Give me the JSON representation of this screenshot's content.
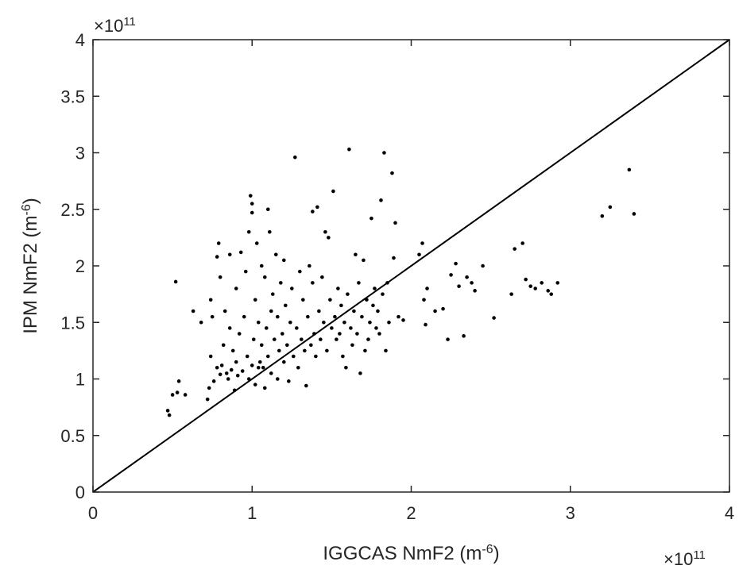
{
  "chart_data": {
    "type": "scatter",
    "title": "",
    "xlabel": {
      "text": "IGGCAS NmF2 (m",
      "sup": "-6",
      "suffix": ")"
    },
    "ylabel": {
      "text": "IPM NmF2 (m",
      "sup": "-6",
      "suffix": ")"
    },
    "x_multiplier": {
      "base": "×10",
      "exp": "11"
    },
    "y_multiplier": {
      "base": "×10",
      "exp": "11"
    },
    "xlim": [
      0,
      4
    ],
    "ylim": [
      0,
      4
    ],
    "xticks": [
      0,
      1,
      2,
      3,
      4
    ],
    "xtick_labels": [
      "0",
      "1",
      "2",
      "3",
      "4"
    ],
    "yticks": [
      0,
      0.5,
      1,
      1.5,
      2,
      2.5,
      3,
      3.5,
      4
    ],
    "ytick_labels": [
      "0",
      "0.5",
      "1",
      "1.5",
      "2",
      "2.5",
      "3",
      "3.5",
      "4"
    ],
    "grid": false,
    "reference_line": {
      "x": [
        0,
        4
      ],
      "y": [
        0,
        4
      ]
    },
    "marker_color": "#000000",
    "points": [
      [
        0.47,
        0.72
      ],
      [
        0.48,
        0.68
      ],
      [
        0.5,
        0.86
      ],
      [
        0.53,
        0.88
      ],
      [
        0.54,
        0.98
      ],
      [
        0.58,
        0.86
      ],
      [
        0.52,
        1.86
      ],
      [
        0.63,
        1.6
      ],
      [
        0.68,
        1.5
      ],
      [
        0.72,
        0.82
      ],
      [
        0.73,
        0.92
      ],
      [
        0.74,
        1.2
      ],
      [
        0.74,
        1.7
      ],
      [
        0.75,
        1.55
      ],
      [
        0.76,
        0.98
      ],
      [
        0.78,
        1.1
      ],
      [
        0.78,
        2.08
      ],
      [
        0.79,
        2.2
      ],
      [
        0.8,
        1.9
      ],
      [
        0.8,
        1.04
      ],
      [
        0.81,
        1.12
      ],
      [
        0.82,
        1.3
      ],
      [
        0.83,
        1.6
      ],
      [
        0.84,
        1.05
      ],
      [
        0.85,
        1.0
      ],
      [
        0.86,
        1.45
      ],
      [
        0.86,
        2.1
      ],
      [
        0.87,
        1.08
      ],
      [
        0.88,
        1.25
      ],
      [
        0.89,
        0.9
      ],
      [
        0.9,
        1.15
      ],
      [
        0.9,
        1.8
      ],
      [
        0.91,
        1.03
      ],
      [
        0.92,
        1.4
      ],
      [
        0.93,
        2.12
      ],
      [
        0.94,
        1.07
      ],
      [
        0.95,
        1.55
      ],
      [
        0.96,
        1.95
      ],
      [
        0.97,
        1.2
      ],
      [
        0.98,
        1.0
      ],
      [
        0.98,
        2.3
      ],
      [
        0.99,
        2.62
      ],
      [
        1.0,
        2.55
      ],
      [
        1.0,
        2.47
      ],
      [
        1.0,
        1.12
      ],
      [
        1.01,
        1.35
      ],
      [
        1.02,
        1.7
      ],
      [
        1.02,
        0.95
      ],
      [
        1.03,
        2.2
      ],
      [
        1.04,
        1.1
      ],
      [
        1.04,
        1.5
      ],
      [
        1.05,
        1.15
      ],
      [
        1.06,
        2.0
      ],
      [
        1.06,
        1.3
      ],
      [
        1.07,
        1.1
      ],
      [
        1.08,
        1.9
      ],
      [
        1.08,
        0.92
      ],
      [
        1.09,
        1.45
      ],
      [
        1.1,
        2.5
      ],
      [
        1.1,
        1.2
      ],
      [
        1.11,
        2.3
      ],
      [
        1.12,
        1.6
      ],
      [
        1.12,
        1.05
      ],
      [
        1.13,
        1.75
      ],
      [
        1.14,
        1.35
      ],
      [
        1.15,
        2.1
      ],
      [
        1.16,
        1.0
      ],
      [
        1.16,
        1.55
      ],
      [
        1.17,
        1.25
      ],
      [
        1.18,
        1.85
      ],
      [
        1.19,
        1.4
      ],
      [
        1.2,
        2.05
      ],
      [
        1.2,
        1.15
      ],
      [
        1.21,
        1.65
      ],
      [
        1.22,
        1.3
      ],
      [
        1.23,
        0.98
      ],
      [
        1.24,
        1.5
      ],
      [
        1.25,
        1.8
      ],
      [
        1.26,
        1.2
      ],
      [
        1.27,
        2.96
      ],
      [
        1.28,
        1.45
      ],
      [
        1.29,
        1.1
      ],
      [
        1.3,
        1.95
      ],
      [
        1.31,
        1.35
      ],
      [
        1.32,
        1.7
      ],
      [
        1.33,
        1.25
      ],
      [
        1.34,
        0.94
      ],
      [
        1.35,
        1.55
      ],
      [
        1.36,
        2.0
      ],
      [
        1.37,
        1.3
      ],
      [
        1.38,
        1.85
      ],
      [
        1.38,
        2.48
      ],
      [
        1.39,
        1.4
      ],
      [
        1.4,
        1.2
      ],
      [
        1.41,
        2.52
      ],
      [
        1.42,
        1.6
      ],
      [
        1.43,
        1.35
      ],
      [
        1.44,
        1.9
      ],
      [
        1.45,
        1.5
      ],
      [
        1.46,
        2.3
      ],
      [
        1.47,
        1.25
      ],
      [
        1.48,
        2.25
      ],
      [
        1.49,
        1.7
      ],
      [
        1.5,
        1.45
      ],
      [
        1.51,
        2.66
      ],
      [
        1.52,
        1.55
      ],
      [
        1.53,
        1.35
      ],
      [
        1.54,
        1.8
      ],
      [
        1.55,
        1.4
      ],
      [
        1.56,
        1.65
      ],
      [
        1.57,
        1.2
      ],
      [
        1.58,
        1.5
      ],
      [
        1.59,
        1.1
      ],
      [
        1.6,
        1.75
      ],
      [
        1.61,
        3.03
      ],
      [
        1.62,
        1.45
      ],
      [
        1.63,
        1.3
      ],
      [
        1.64,
        1.6
      ],
      [
        1.65,
        2.1
      ],
      [
        1.66,
        1.4
      ],
      [
        1.67,
        1.85
      ],
      [
        1.68,
        1.05
      ],
      [
        1.69,
        1.55
      ],
      [
        1.7,
        2.05
      ],
      [
        1.71,
        1.25
      ],
      [
        1.72,
        1.7
      ],
      [
        1.73,
        1.35
      ],
      [
        1.74,
        1.5
      ],
      [
        1.75,
        2.42
      ],
      [
        1.76,
        1.65
      ],
      [
        1.77,
        1.8
      ],
      [
        1.78,
        1.45
      ],
      [
        1.79,
        1.6
      ],
      [
        1.8,
        1.4
      ],
      [
        1.81,
        2.58
      ],
      [
        1.82,
        1.75
      ],
      [
        1.83,
        3.0
      ],
      [
        1.84,
        1.25
      ],
      [
        1.85,
        1.85
      ],
      [
        1.86,
        1.5
      ],
      [
        1.88,
        2.82
      ],
      [
        1.89,
        2.07
      ],
      [
        1.9,
        2.38
      ],
      [
        1.92,
        1.55
      ],
      [
        1.95,
        1.52
      ],
      [
        2.05,
        2.1
      ],
      [
        2.07,
        2.2
      ],
      [
        2.08,
        1.7
      ],
      [
        2.09,
        1.48
      ],
      [
        2.1,
        1.8
      ],
      [
        2.15,
        1.6
      ],
      [
        2.2,
        1.62
      ],
      [
        2.23,
        1.35
      ],
      [
        2.25,
        1.92
      ],
      [
        2.28,
        2.02
      ],
      [
        2.3,
        1.82
      ],
      [
        2.33,
        1.38
      ],
      [
        2.35,
        1.9
      ],
      [
        2.38,
        1.85
      ],
      [
        2.4,
        1.78
      ],
      [
        2.45,
        2.0
      ],
      [
        2.52,
        1.54
      ],
      [
        2.63,
        1.75
      ],
      [
        2.65,
        2.15
      ],
      [
        2.7,
        2.2
      ],
      [
        2.72,
        1.88
      ],
      [
        2.75,
        1.82
      ],
      [
        2.78,
        1.8
      ],
      [
        2.82,
        1.85
      ],
      [
        2.86,
        1.78
      ],
      [
        2.88,
        1.75
      ],
      [
        2.92,
        1.85
      ],
      [
        3.2,
        2.44
      ],
      [
        3.25,
        2.52
      ],
      [
        3.37,
        2.85
      ],
      [
        3.4,
        2.46
      ]
    ]
  }
}
